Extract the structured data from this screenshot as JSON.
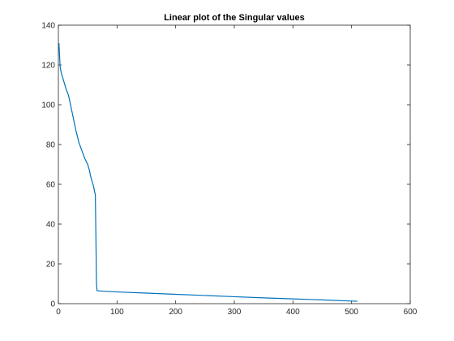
{
  "chart_data": {
    "type": "line",
    "title": "Linear plot of the Singular values",
    "xlabel": "",
    "ylabel": "",
    "xlim": [
      0,
      600
    ],
    "ylim": [
      0,
      140
    ],
    "x_ticks": [
      0,
      100,
      200,
      300,
      400,
      500,
      600
    ],
    "y_ticks": [
      0,
      20,
      40,
      60,
      80,
      100,
      120,
      140
    ],
    "x_tick_labels": [
      "0",
      "100",
      "200",
      "300",
      "400",
      "500",
      "600"
    ],
    "y_tick_labels": [
      "0",
      "20",
      "40",
      "60",
      "80",
      "100",
      "120",
      "140"
    ],
    "grid": false,
    "legend": "none",
    "series": [
      {
        "color": "#0072bd",
        "x": [
          1,
          2,
          3,
          5,
          8,
          10,
          13,
          17,
          20,
          25,
          30,
          35,
          40,
          45,
          50,
          53,
          55,
          58,
          60,
          62,
          63,
          64,
          65,
          66,
          80,
          100,
          150,
          200,
          250,
          300,
          350,
          400,
          450,
          500,
          510
        ],
        "y": [
          131,
          125,
          119,
          116,
          113,
          111,
          108,
          105,
          101,
          94,
          87,
          81,
          77,
          73,
          70,
          67,
          64,
          61,
          59,
          56,
          55,
          34,
          10,
          6.5,
          6.2,
          5.9,
          5.3,
          4.7,
          4.1,
          3.5,
          2.9,
          2.4,
          1.9,
          1.3,
          1.2
        ]
      }
    ]
  }
}
